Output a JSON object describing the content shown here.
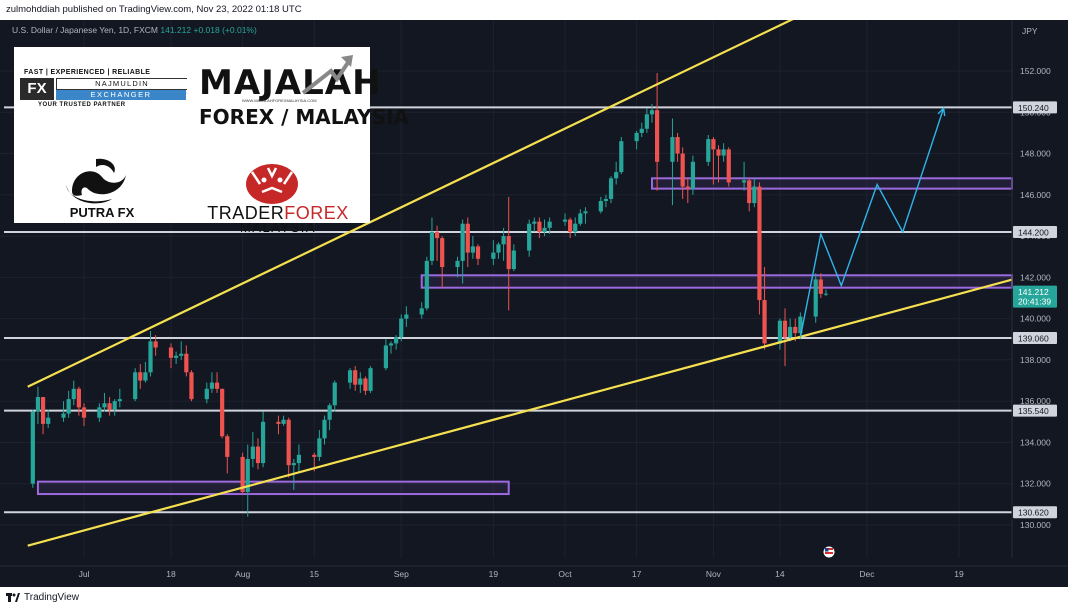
{
  "header": {
    "publisher": "zulmohddiah published on TradingView.com, Nov 23, 2022 01:18 UTC"
  },
  "symbol": {
    "name": "U.S. Dollar / Japanese Yen, 1D, FXCM",
    "price": "141.212",
    "change": "+0.018 (+0.01%)"
  },
  "footer": {
    "brand": "TradingView"
  },
  "logos": {
    "fx_tagline": "FAST | EXPERIENCED | RELIABLE",
    "fx_mark": "FX",
    "fx_name": "NAJMULDIN",
    "fx_exchanger": "EXCHANGER",
    "fx_partner": "YOUR TRUSTED PARTNER",
    "majalah_line1": "MAJALAH",
    "majalah_url": "WWW.MAJALAHFOREXMALAYSIA.COM",
    "majalah_line2": "FOREX / MALAYSIA",
    "putra": "PUTRA FX",
    "trader_a": "TRADER",
    "trader_b": "FOREX",
    "trader_c": "MALAYSIA"
  },
  "colors": {
    "background": "#131722",
    "up": "#26a69a",
    "down": "#ef5350",
    "trendline": "#f5e04f",
    "level": "#d1d4dc",
    "zone": "#9c6ade",
    "projection": "#2fb4e8"
  },
  "chart_data": {
    "type": "candlestick",
    "title": "U.S. Dollar / Japanese Yen, 1D, FXCM",
    "ylabel": "JPY",
    "ylim": [
      129.4,
      153.3
    ],
    "y_ticks": [
      "130.000",
      "132.000",
      "134.000",
      "136.000",
      "138.000",
      "140.000",
      "142.000",
      "144.000",
      "146.000",
      "148.000",
      "150.000",
      "152.000"
    ],
    "x_ticks": [
      {
        "label": "Jul",
        "date": "2022-07-01"
      },
      {
        "label": "18",
        "date": "2022-07-18"
      },
      {
        "label": "Aug",
        "date": "2022-08-01"
      },
      {
        "label": "15",
        "date": "2022-08-15"
      },
      {
        "label": "Sep",
        "date": "2022-09-01"
      },
      {
        "label": "19",
        "date": "2022-09-19"
      },
      {
        "label": "Oct",
        "date": "2022-10-03"
      },
      {
        "label": "17",
        "date": "2022-10-17"
      },
      {
        "label": "Nov",
        "date": "2022-11-01"
      },
      {
        "label": "14",
        "date": "2022-11-14"
      },
      {
        "label": "Dec",
        "date": "2022-12-01"
      },
      {
        "label": "19",
        "date": "2022-12-19"
      }
    ],
    "current_price": {
      "value": 141.212,
      "label": "141.212",
      "countdown": "20:41:39"
    },
    "horizontal_levels": [
      {
        "value": 150.24,
        "label": "150.240"
      },
      {
        "value": 144.2,
        "label": "144.200"
      },
      {
        "value": 139.06,
        "label": "139.060"
      },
      {
        "value": 135.54,
        "label": "135.540"
      },
      {
        "value": 130.62,
        "label": "130.620"
      }
    ],
    "zones": [
      {
        "from": "2022-06-22",
        "to": "2022-09-22",
        "low": 131.5,
        "high": 132.1
      },
      {
        "from": "2022-09-05",
        "to": "2022-12-31",
        "low": 141.5,
        "high": 142.1
      },
      {
        "from": "2022-10-20",
        "to": "2022-12-31",
        "low": 146.3,
        "high": 146.8
      }
    ],
    "trendlines": [
      {
        "name": "upper channel",
        "points": [
          {
            "date": "2022-06-20",
            "value": 136.7
          },
          {
            "date": "2022-11-29",
            "value": 156.0
          }
        ]
      },
      {
        "name": "lower channel",
        "points": [
          {
            "date": "2022-06-20",
            "value": 129.0
          },
          {
            "date": "2022-12-31",
            "value": 142.0
          }
        ]
      }
    ],
    "projection_path": [
      {
        "date": "2022-11-18",
        "value": 139.1
      },
      {
        "date": "2022-11-22",
        "value": 144.1
      },
      {
        "date": "2022-11-26",
        "value": 141.6
      },
      {
        "date": "2022-12-03",
        "value": 146.5
      },
      {
        "date": "2022-12-08",
        "value": 144.2
      },
      {
        "date": "2022-12-16",
        "value": 150.2
      }
    ],
    "candles": [
      {
        "date": "2022-06-21",
        "o": 132.0,
        "h": 135.6,
        "c": 135.5,
        "l": 131.8
      },
      {
        "date": "2022-06-22",
        "o": 135.5,
        "h": 136.7,
        "c": 136.2,
        "l": 134.9
      },
      {
        "date": "2022-06-23",
        "o": 136.2,
        "h": 136.2,
        "c": 134.9,
        "l": 134.4
      },
      {
        "date": "2022-06-24",
        "o": 134.9,
        "h": 135.6,
        "c": 135.2,
        "l": 134.7
      },
      {
        "date": "2022-06-27",
        "o": 135.2,
        "h": 136.0,
        "c": 135.4,
        "l": 135.0
      },
      {
        "date": "2022-06-28",
        "o": 135.4,
        "h": 136.5,
        "c": 136.1,
        "l": 135.2
      },
      {
        "date": "2022-06-29",
        "o": 136.1,
        "h": 137.0,
        "c": 136.6,
        "l": 135.8
      },
      {
        "date": "2022-06-30",
        "o": 136.6,
        "h": 136.7,
        "c": 135.7,
        "l": 135.3
      },
      {
        "date": "2022-07-01",
        "o": 135.7,
        "h": 135.9,
        "c": 135.2,
        "l": 134.8
      },
      {
        "date": "2022-07-04",
        "o": 135.2,
        "h": 135.9,
        "c": 135.7,
        "l": 135.0
      },
      {
        "date": "2022-07-05",
        "o": 135.7,
        "h": 136.4,
        "c": 135.9,
        "l": 135.5
      },
      {
        "date": "2022-07-06",
        "o": 135.9,
        "h": 136.2,
        "c": 135.6,
        "l": 135.3
      },
      {
        "date": "2022-07-07",
        "o": 135.6,
        "h": 136.1,
        "c": 136.0,
        "l": 135.3
      },
      {
        "date": "2022-07-08",
        "o": 136.0,
        "h": 136.6,
        "c": 136.1,
        "l": 135.7
      },
      {
        "date": "2022-07-11",
        "o": 136.1,
        "h": 137.6,
        "c": 137.4,
        "l": 136.0
      },
      {
        "date": "2022-07-12",
        "o": 137.4,
        "h": 137.8,
        "c": 137.0,
        "l": 136.6
      },
      {
        "date": "2022-07-13",
        "o": 137.0,
        "h": 137.9,
        "c": 137.4,
        "l": 136.9
      },
      {
        "date": "2022-07-14",
        "o": 137.4,
        "h": 139.4,
        "c": 138.9,
        "l": 137.2
      },
      {
        "date": "2022-07-15",
        "o": 138.9,
        "h": 139.2,
        "c": 138.6,
        "l": 138.2
      },
      {
        "date": "2022-07-18",
        "o": 138.6,
        "h": 138.8,
        "c": 138.1,
        "l": 137.6
      },
      {
        "date": "2022-07-19",
        "o": 138.1,
        "h": 138.4,
        "c": 138.2,
        "l": 137.8
      },
      {
        "date": "2022-07-20",
        "o": 138.2,
        "h": 138.9,
        "c": 138.3,
        "l": 138.0
      },
      {
        "date": "2022-07-21",
        "o": 138.3,
        "h": 138.7,
        "c": 137.4,
        "l": 137.2
      },
      {
        "date": "2022-07-22",
        "o": 137.4,
        "h": 137.5,
        "c": 136.1,
        "l": 136.0
      },
      {
        "date": "2022-07-25",
        "o": 136.1,
        "h": 136.9,
        "c": 136.6,
        "l": 135.9
      },
      {
        "date": "2022-07-26",
        "o": 136.6,
        "h": 137.4,
        "c": 136.9,
        "l": 136.4
      },
      {
        "date": "2022-07-27",
        "o": 136.9,
        "h": 137.4,
        "c": 136.6,
        "l": 136.4
      },
      {
        "date": "2022-07-28",
        "o": 136.6,
        "h": 136.6,
        "c": 134.3,
        "l": 134.2
      },
      {
        "date": "2022-07-29",
        "o": 134.3,
        "h": 134.4,
        "c": 133.3,
        "l": 132.5
      },
      {
        "date": "2022-08-01",
        "o": 133.3,
        "h": 133.5,
        "c": 131.6,
        "l": 131.5
      },
      {
        "date": "2022-08-02",
        "o": 131.6,
        "h": 133.9,
        "c": 133.2,
        "l": 130.4
      },
      {
        "date": "2022-08-03",
        "o": 133.2,
        "h": 134.5,
        "c": 133.8,
        "l": 132.8
      },
      {
        "date": "2022-08-04",
        "o": 133.8,
        "h": 134.2,
        "c": 133.0,
        "l": 132.7
      },
      {
        "date": "2022-08-05",
        "o": 133.0,
        "h": 135.5,
        "c": 135.0,
        "l": 132.8
      },
      {
        "date": "2022-08-08",
        "o": 135.0,
        "h": 135.3,
        "c": 134.9,
        "l": 134.4
      },
      {
        "date": "2022-08-09",
        "o": 134.9,
        "h": 135.3,
        "c": 135.1,
        "l": 134.8
      },
      {
        "date": "2022-08-10",
        "o": 135.1,
        "h": 135.2,
        "c": 132.9,
        "l": 132.3
      },
      {
        "date": "2022-08-11",
        "o": 132.9,
        "h": 133.2,
        "c": 133.0,
        "l": 131.7
      },
      {
        "date": "2022-08-12",
        "o": 133.0,
        "h": 133.9,
        "c": 133.4,
        "l": 132.6
      },
      {
        "date": "2022-08-15",
        "o": 133.4,
        "h": 133.5,
        "c": 133.3,
        "l": 132.6
      },
      {
        "date": "2022-08-16",
        "o": 133.3,
        "h": 134.6,
        "c": 134.2,
        "l": 133.1
      },
      {
        "date": "2022-08-17",
        "o": 134.2,
        "h": 135.3,
        "c": 135.1,
        "l": 133.9
      },
      {
        "date": "2022-08-18",
        "o": 135.1,
        "h": 135.9,
        "c": 135.8,
        "l": 134.6
      },
      {
        "date": "2022-08-19",
        "o": 135.8,
        "h": 137.0,
        "c": 136.9,
        "l": 135.5
      },
      {
        "date": "2022-08-22",
        "o": 136.9,
        "h": 137.6,
        "c": 137.5,
        "l": 136.6
      },
      {
        "date": "2022-08-23",
        "o": 137.5,
        "h": 137.7,
        "c": 136.8,
        "l": 136.5
      },
      {
        "date": "2022-08-24",
        "o": 136.8,
        "h": 137.4,
        "c": 137.1,
        "l": 136.4
      },
      {
        "date": "2022-08-25",
        "o": 137.1,
        "h": 137.2,
        "c": 136.5,
        "l": 136.3
      },
      {
        "date": "2022-08-26",
        "o": 136.5,
        "h": 137.7,
        "c": 137.6,
        "l": 136.4
      },
      {
        "date": "2022-08-29",
        "o": 137.6,
        "h": 139.0,
        "c": 138.7,
        "l": 137.5
      },
      {
        "date": "2022-08-30",
        "o": 138.7,
        "h": 138.9,
        "c": 138.8,
        "l": 138.3
      },
      {
        "date": "2022-08-31",
        "o": 138.8,
        "h": 139.2,
        "c": 139.1,
        "l": 138.5
      },
      {
        "date": "2022-09-01",
        "o": 139.1,
        "h": 140.2,
        "c": 140.0,
        "l": 138.9
      },
      {
        "date": "2022-09-02",
        "o": 140.0,
        "h": 140.6,
        "c": 140.2,
        "l": 139.6
      },
      {
        "date": "2022-09-05",
        "o": 140.2,
        "h": 140.8,
        "c": 140.5,
        "l": 140.0
      },
      {
        "date": "2022-09-06",
        "o": 140.5,
        "h": 143.0,
        "c": 142.8,
        "l": 140.4
      },
      {
        "date": "2022-09-07",
        "o": 142.8,
        "h": 144.9,
        "c": 144.2,
        "l": 142.6
      },
      {
        "date": "2022-09-08",
        "o": 144.2,
        "h": 144.5,
        "c": 143.9,
        "l": 142.8
      },
      {
        "date": "2022-09-09",
        "o": 143.9,
        "h": 144.0,
        "c": 142.5,
        "l": 141.5
      },
      {
        "date": "2022-09-12",
        "o": 142.5,
        "h": 143.0,
        "c": 142.8,
        "l": 142.0
      },
      {
        "date": "2022-09-13",
        "o": 142.8,
        "h": 144.8,
        "c": 144.6,
        "l": 141.7
      },
      {
        "date": "2022-09-14",
        "o": 144.6,
        "h": 144.9,
        "c": 143.2,
        "l": 142.5
      },
      {
        "date": "2022-09-15",
        "o": 143.2,
        "h": 144.0,
        "c": 143.5,
        "l": 142.9
      },
      {
        "date": "2022-09-16",
        "o": 143.5,
        "h": 143.6,
        "c": 142.9,
        "l": 142.6
      },
      {
        "date": "2022-09-19",
        "o": 142.9,
        "h": 143.8,
        "c": 143.2,
        "l": 142.6
      },
      {
        "date": "2022-09-20",
        "o": 143.2,
        "h": 143.7,
        "c": 143.6,
        "l": 142.9
      },
      {
        "date": "2022-09-21",
        "o": 143.6,
        "h": 144.4,
        "c": 144.0,
        "l": 142.8
      },
      {
        "date": "2022-09-22",
        "o": 144.0,
        "h": 145.9,
        "c": 142.4,
        "l": 140.4
      },
      {
        "date": "2022-09-23",
        "o": 142.4,
        "h": 143.6,
        "c": 143.3,
        "l": 142.3
      },
      {
        "date": "2022-09-26",
        "o": 143.3,
        "h": 144.8,
        "c": 144.6,
        "l": 143.0
      },
      {
        "date": "2022-09-27",
        "o": 144.6,
        "h": 144.9,
        "c": 144.7,
        "l": 144.2
      },
      {
        "date": "2022-09-28",
        "o": 144.7,
        "h": 144.9,
        "c": 144.2,
        "l": 143.9
      },
      {
        "date": "2022-09-29",
        "o": 144.2,
        "h": 144.8,
        "c": 144.4,
        "l": 144.0
      },
      {
        "date": "2022-09-30",
        "o": 144.4,
        "h": 144.9,
        "c": 144.7,
        "l": 144.1
      },
      {
        "date": "2022-10-03",
        "o": 144.7,
        "h": 145.1,
        "c": 144.8,
        "l": 144.5
      },
      {
        "date": "2022-10-04",
        "o": 144.8,
        "h": 144.9,
        "c": 144.2,
        "l": 143.9
      },
      {
        "date": "2022-10-05",
        "o": 144.2,
        "h": 144.9,
        "c": 144.6,
        "l": 144.0
      },
      {
        "date": "2022-10-06",
        "o": 144.6,
        "h": 145.3,
        "c": 145.1,
        "l": 144.5
      },
      {
        "date": "2022-10-07",
        "o": 145.1,
        "h": 145.4,
        "c": 145.2,
        "l": 144.6
      },
      {
        "date": "2022-10-10",
        "o": 145.2,
        "h": 145.9,
        "c": 145.7,
        "l": 145.1
      },
      {
        "date": "2022-10-11",
        "o": 145.7,
        "h": 146.0,
        "c": 145.8,
        "l": 145.4
      },
      {
        "date": "2022-10-12",
        "o": 145.8,
        "h": 146.9,
        "c": 146.8,
        "l": 145.6
      },
      {
        "date": "2022-10-13",
        "o": 146.8,
        "h": 147.6,
        "c": 147.1,
        "l": 146.5
      },
      {
        "date": "2022-10-14",
        "o": 147.1,
        "h": 148.8,
        "c": 148.6,
        "l": 147.0
      },
      {
        "date": "2022-10-17",
        "o": 148.6,
        "h": 149.1,
        "c": 149.0,
        "l": 148.2
      },
      {
        "date": "2022-10-18",
        "o": 149.0,
        "h": 149.5,
        "c": 149.2,
        "l": 148.8
      },
      {
        "date": "2022-10-19",
        "o": 149.2,
        "h": 150.2,
        "c": 149.9,
        "l": 149.0
      },
      {
        "date": "2022-10-20",
        "o": 149.9,
        "h": 150.4,
        "c": 150.1,
        "l": 149.5
      },
      {
        "date": "2022-10-21",
        "o": 150.1,
        "h": 151.9,
        "c": 147.6,
        "l": 146.2
      },
      {
        "date": "2022-10-24",
        "o": 147.6,
        "h": 149.7,
        "c": 148.8,
        "l": 145.5
      },
      {
        "date": "2022-10-25",
        "o": 148.8,
        "h": 149.0,
        "c": 148.0,
        "l": 147.6
      },
      {
        "date": "2022-10-26",
        "o": 148.0,
        "h": 148.3,
        "c": 146.4,
        "l": 145.8
      },
      {
        "date": "2022-10-27",
        "o": 146.4,
        "h": 146.8,
        "c": 146.3,
        "l": 145.6
      },
      {
        "date": "2022-10-28",
        "o": 146.3,
        "h": 147.9,
        "c": 147.6,
        "l": 146.0
      },
      {
        "date": "2022-10-31",
        "o": 147.6,
        "h": 148.9,
        "c": 148.7,
        "l": 147.4
      },
      {
        "date": "2022-11-01",
        "o": 148.7,
        "h": 148.8,
        "c": 148.2,
        "l": 146.5
      },
      {
        "date": "2022-11-02",
        "o": 148.2,
        "h": 148.4,
        "c": 147.9,
        "l": 146.6
      },
      {
        "date": "2022-11-03",
        "o": 147.9,
        "h": 148.5,
        "c": 148.2,
        "l": 147.6
      },
      {
        "date": "2022-11-04",
        "o": 148.2,
        "h": 148.3,
        "c": 146.6,
        "l": 146.4
      },
      {
        "date": "2022-11-07",
        "o": 146.6,
        "h": 147.6,
        "c": 146.7,
        "l": 146.2
      },
      {
        "date": "2022-11-08",
        "o": 146.7,
        "h": 146.8,
        "c": 145.6,
        "l": 145.2
      },
      {
        "date": "2022-11-09",
        "o": 145.6,
        "h": 146.8,
        "c": 146.4,
        "l": 145.4
      },
      {
        "date": "2022-11-10",
        "o": 146.4,
        "h": 146.6,
        "c": 140.9,
        "l": 140.2
      },
      {
        "date": "2022-11-11",
        "o": 140.9,
        "h": 142.5,
        "c": 138.8,
        "l": 138.5
      },
      {
        "date": "2022-11-14",
        "o": 138.8,
        "h": 140.0,
        "c": 139.9,
        "l": 138.5
      },
      {
        "date": "2022-11-15",
        "o": 139.9,
        "h": 140.5,
        "c": 139.1,
        "l": 137.7
      },
      {
        "date": "2022-11-16",
        "o": 139.1,
        "h": 140.0,
        "c": 139.6,
        "l": 138.9
      },
      {
        "date": "2022-11-17",
        "o": 139.6,
        "h": 140.0,
        "c": 139.3,
        "l": 138.9
      },
      {
        "date": "2022-11-18",
        "o": 139.3,
        "h": 140.3,
        "c": 140.1,
        "l": 139.0
      },
      {
        "date": "2022-11-21",
        "o": 140.1,
        "h": 142.2,
        "c": 141.9,
        "l": 139.8
      },
      {
        "date": "2022-11-22",
        "o": 141.9,
        "h": 142.2,
        "c": 141.2,
        "l": 141.0
      },
      {
        "date": "2022-11-23",
        "o": 141.2,
        "h": 141.4,
        "c": 141.21,
        "l": 141.1
      }
    ]
  }
}
